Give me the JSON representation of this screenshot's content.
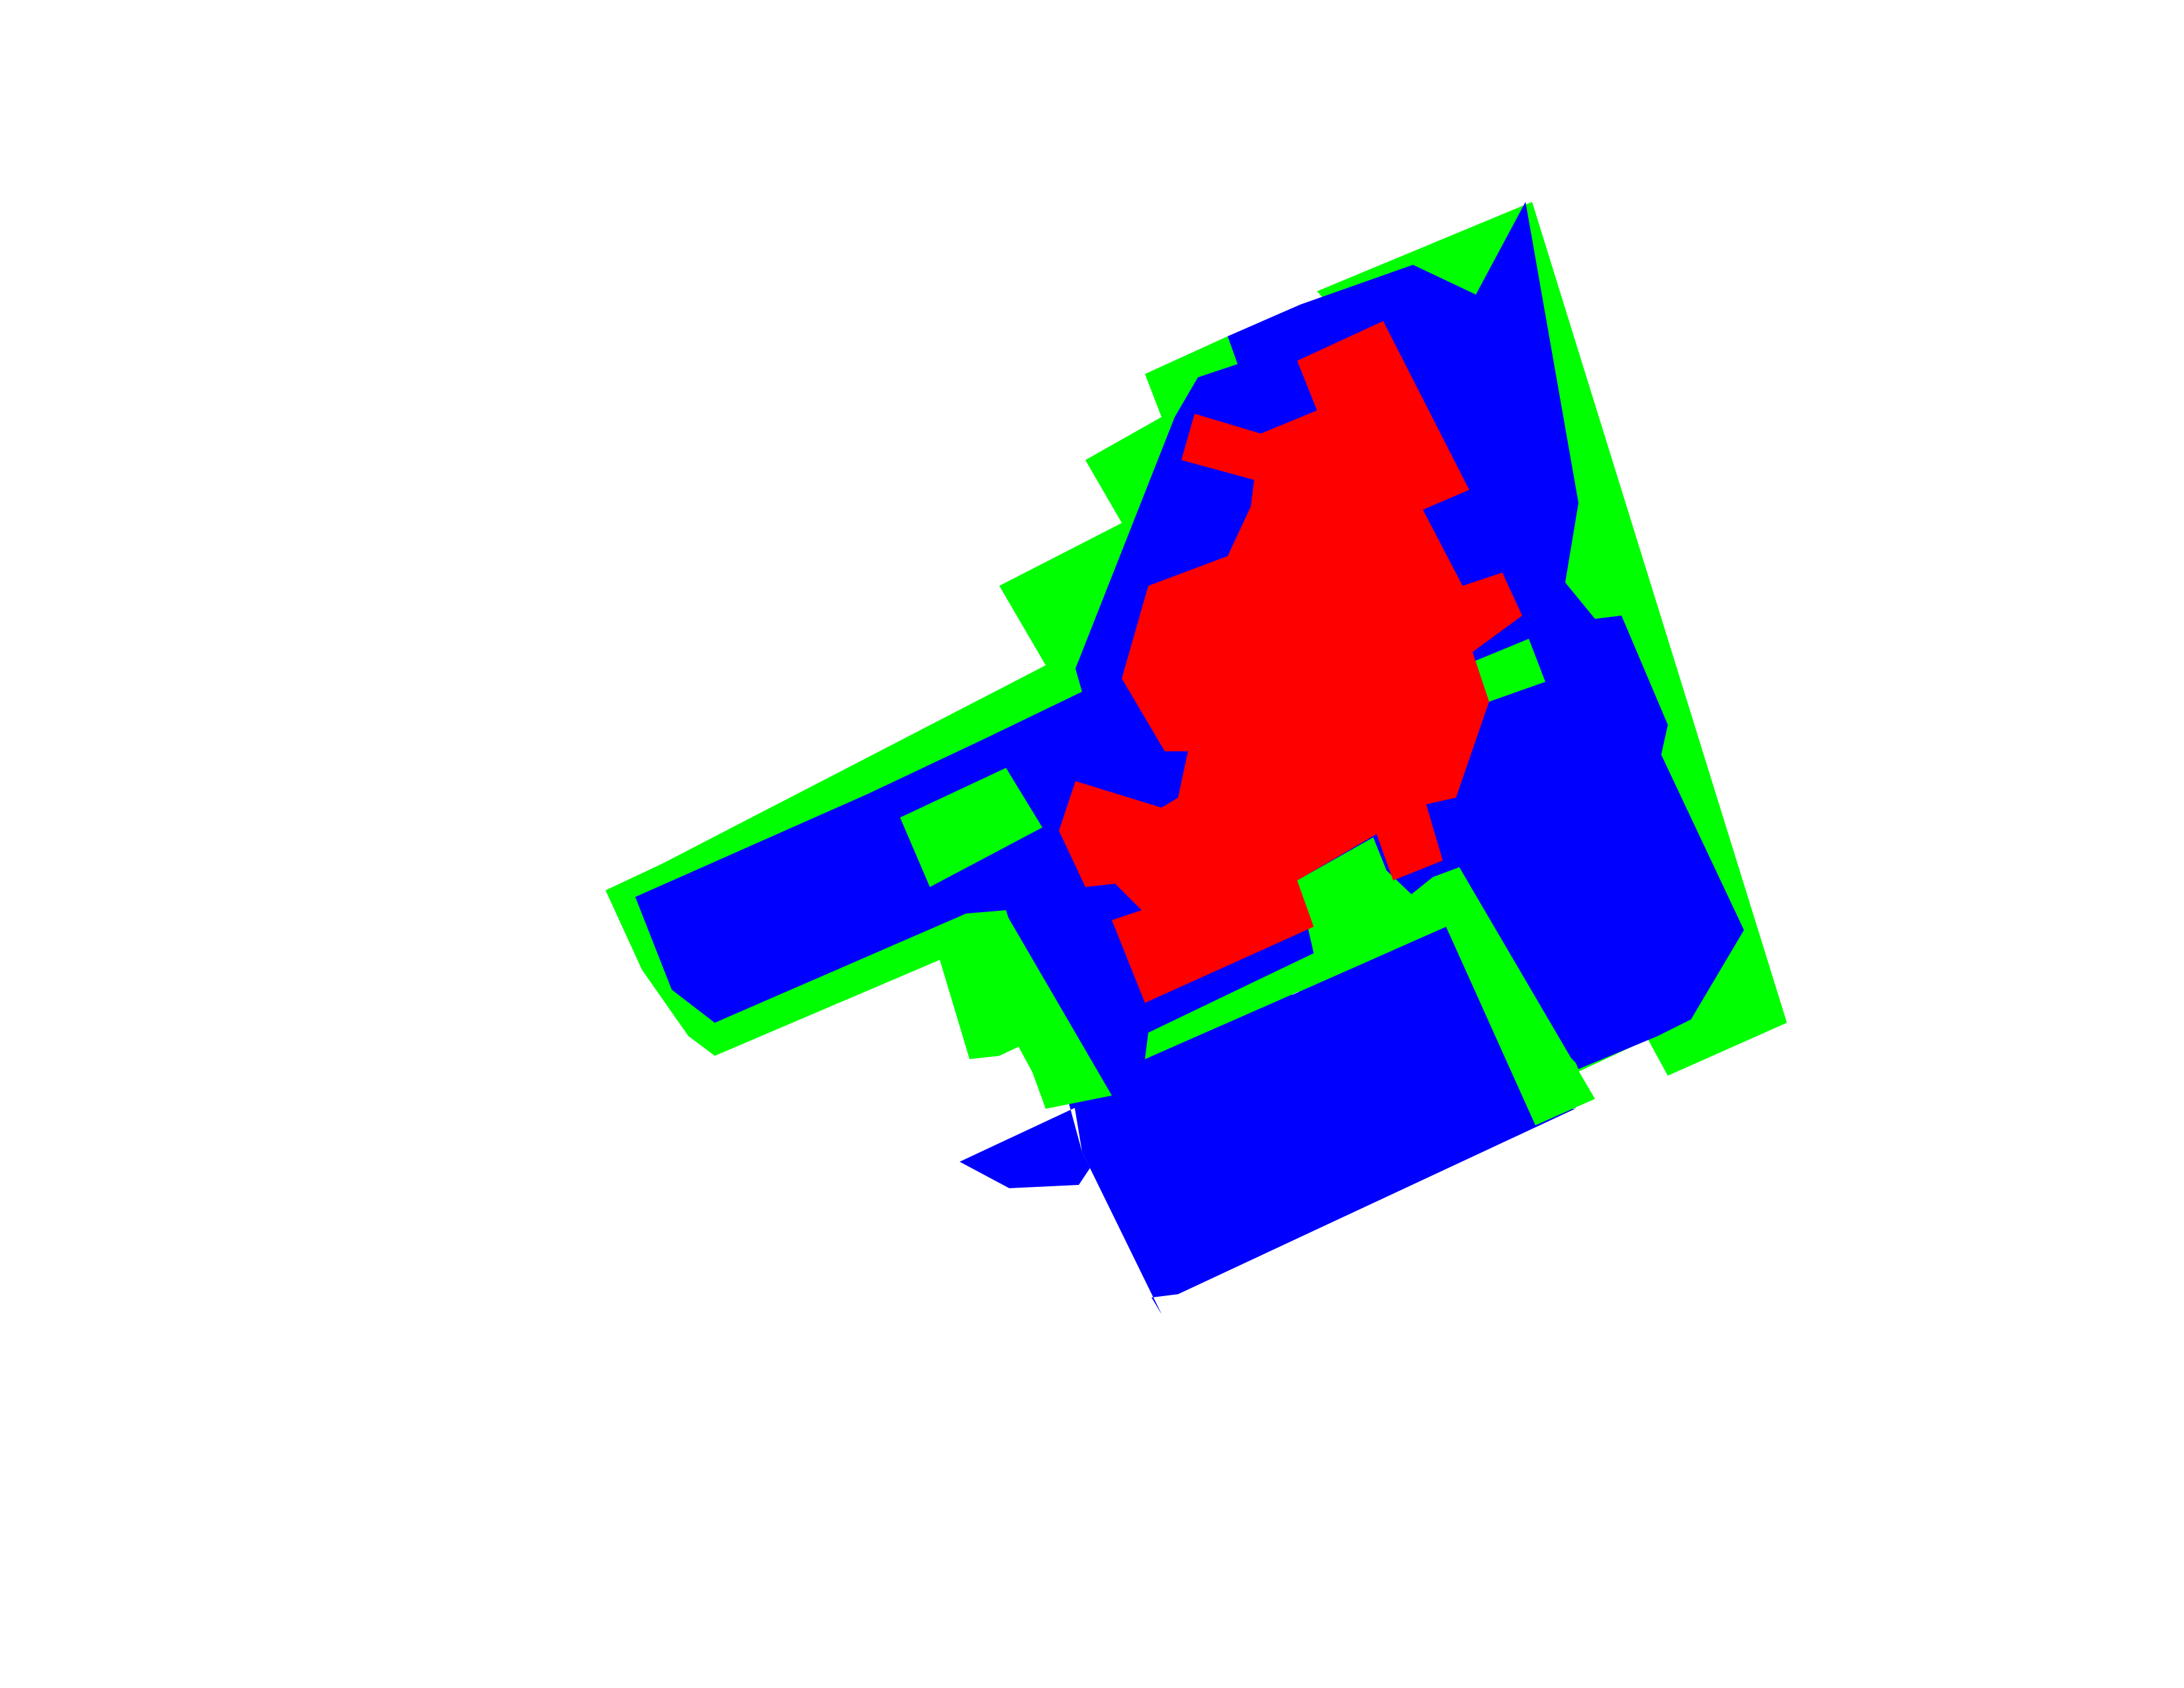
{
  "background_color": "#ffffff",
  "layers": [
    {
      "name": "green-outer-region",
      "color": "#00ff00"
    },
    {
      "name": "blue-middle-region",
      "color": "#0000ff"
    },
    {
      "name": "red-inner-region",
      "color": "#ff0000"
    }
  ]
}
